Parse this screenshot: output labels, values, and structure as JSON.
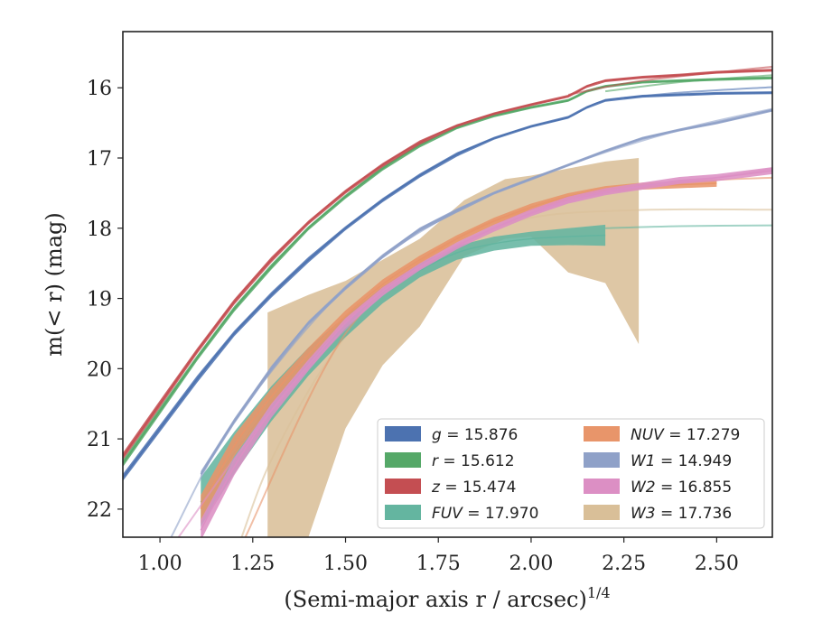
{
  "chart_data": {
    "type": "line",
    "title": "",
    "xlabel": "(Semi-major axis r / arcsec)",
    "xlabel_exponent": "1/4",
    "ylabel": "m(< r) (mag)",
    "xlim": [
      0.9,
      2.65
    ],
    "ylim": [
      22.4,
      15.2
    ],
    "y_inverted": true,
    "xticks": [
      1.0,
      1.25,
      1.5,
      1.75,
      2.0,
      2.25,
      2.5
    ],
    "xtick_labels": [
      "1.00",
      "1.25",
      "1.50",
      "1.75",
      "2.00",
      "2.25",
      "2.50"
    ],
    "yticks": [
      16,
      17,
      18,
      19,
      20,
      21,
      22
    ],
    "ytick_labels": [
      "16",
      "17",
      "18",
      "19",
      "20",
      "21",
      "22"
    ],
    "grid": false,
    "legend_position": "lower-right",
    "legend_columns": 2,
    "series": [
      {
        "band": "g",
        "legend": "g = 15.876",
        "color": "#4c72b0",
        "x": [
          0.9,
          1.0,
          1.1,
          1.2,
          1.3,
          1.4,
          1.5,
          1.6,
          1.7,
          1.8,
          1.9,
          2.0,
          2.1,
          2.15,
          2.2,
          2.3,
          2.4,
          2.5,
          2.65
        ],
        "y": [
          21.55,
          20.85,
          20.15,
          19.5,
          18.95,
          18.45,
          18.0,
          17.6,
          17.25,
          16.95,
          16.72,
          16.55,
          16.42,
          16.28,
          16.18,
          16.12,
          16.1,
          16.08,
          16.07
        ],
        "band_width": [
          0.05,
          0.05,
          0.05,
          0.04,
          0.04,
          0.04,
          0.03,
          0.03,
          0.03,
          0.03,
          0.02,
          0.02,
          0.02,
          0.02,
          0.02,
          0.02,
          0.02,
          0.02,
          0.02
        ],
        "extrapolation": {
          "x": [
            2.25,
            2.4,
            2.65
          ],
          "y": [
            16.15,
            16.07,
            15.99
          ]
        }
      },
      {
        "band": "r",
        "legend": "r = 15.612",
        "color": "#55a868",
        "x": [
          0.9,
          1.0,
          1.1,
          1.2,
          1.3,
          1.4,
          1.5,
          1.6,
          1.7,
          1.8,
          1.9,
          2.0,
          2.1,
          2.15,
          2.2,
          2.3,
          2.4,
          2.5,
          2.65
        ],
        "y": [
          21.35,
          20.6,
          19.85,
          19.15,
          18.55,
          18.0,
          17.55,
          17.15,
          16.82,
          16.57,
          16.4,
          16.28,
          16.18,
          16.05,
          15.98,
          15.92,
          15.9,
          15.88,
          15.86
        ],
        "band_width": [
          0.05,
          0.05,
          0.04,
          0.04,
          0.04,
          0.03,
          0.03,
          0.03,
          0.03,
          0.02,
          0.02,
          0.02,
          0.02,
          0.02,
          0.02,
          0.02,
          0.02,
          0.02,
          0.02
        ],
        "extrapolation": {
          "x": [
            2.2,
            2.4,
            2.65
          ],
          "y": [
            16.05,
            15.92,
            15.82
          ]
        }
      },
      {
        "band": "z",
        "legend": "z = 15.474",
        "color": "#c44e52",
        "x": [
          0.9,
          1.0,
          1.1,
          1.2,
          1.3,
          1.4,
          1.5,
          1.6,
          1.7,
          1.8,
          1.9,
          2.0,
          2.1,
          2.15,
          2.2,
          2.3,
          2.4,
          2.5,
          2.65
        ],
        "y": [
          21.25,
          20.5,
          19.75,
          19.05,
          18.45,
          17.92,
          17.48,
          17.1,
          16.78,
          16.54,
          16.37,
          16.24,
          16.12,
          15.98,
          15.9,
          15.85,
          15.82,
          15.78,
          15.75
        ],
        "band_width": [
          0.05,
          0.05,
          0.04,
          0.04,
          0.04,
          0.03,
          0.03,
          0.03,
          0.03,
          0.02,
          0.02,
          0.02,
          0.02,
          0.02,
          0.02,
          0.02,
          0.02,
          0.02,
          0.02
        ],
        "extrapolation": {
          "x": [
            2.1,
            2.3,
            2.65
          ],
          "y": [
            16.1,
            15.9,
            15.7
          ]
        }
      },
      {
        "band": "FUV",
        "legend": "FUV = 17.970",
        "color": "#64b5a0",
        "x": [
          1.11,
          1.2,
          1.3,
          1.4,
          1.5,
          1.6,
          1.7,
          1.8,
          1.9,
          2.0,
          2.1,
          2.2
        ],
        "y": [
          21.9,
          21.2,
          20.5,
          19.9,
          19.4,
          18.95,
          18.6,
          18.35,
          18.22,
          18.15,
          18.12,
          18.1
        ],
        "band_width": [
          0.35,
          0.3,
          0.25,
          0.2,
          0.15,
          0.12,
          0.1,
          0.1,
          0.1,
          0.1,
          0.12,
          0.15
        ],
        "extrapolation": {
          "x": [
            2.2,
            2.4,
            2.65
          ],
          "y": [
            18.0,
            17.97,
            17.96
          ]
        }
      },
      {
        "band": "NUV",
        "legend": "NUV = 17.279",
        "color": "#e8956a",
        "x": [
          1.11,
          1.2,
          1.3,
          1.4,
          1.5,
          1.6,
          1.7,
          1.8,
          1.9,
          2.0,
          2.1,
          2.2,
          2.3,
          2.4,
          2.5
        ],
        "y": [
          22.0,
          21.1,
          20.4,
          19.8,
          19.25,
          18.8,
          18.45,
          18.15,
          17.9,
          17.7,
          17.55,
          17.45,
          17.4,
          17.38,
          17.36
        ],
        "band_width": [
          0.2,
          0.15,
          0.12,
          0.1,
          0.08,
          0.07,
          0.06,
          0.05,
          0.05,
          0.05,
          0.05,
          0.05,
          0.05,
          0.05,
          0.05
        ],
        "extrapolation": {
          "x": [
            1.23,
            1.5,
            1.8,
            2.1,
            2.4,
            2.65
          ],
          "y": [
            22.4,
            19.5,
            18.15,
            17.6,
            17.35,
            17.28
          ]
        }
      },
      {
        "band": "W1",
        "legend": "W1 = 14.949",
        "color": "#8fa1c8",
        "x": [
          1.11,
          1.2,
          1.3,
          1.4,
          1.5,
          1.6,
          1.7,
          1.8,
          1.9,
          2.0,
          2.1,
          2.2,
          2.3,
          2.4,
          2.5,
          2.65
        ],
        "y": [
          21.5,
          20.75,
          20.0,
          19.35,
          18.85,
          18.4,
          18.02,
          17.75,
          17.5,
          17.3,
          17.1,
          16.9,
          16.72,
          16.6,
          16.5,
          16.32
        ],
        "band_width": [
          0.04,
          0.04,
          0.04,
          0.03,
          0.03,
          0.03,
          0.03,
          0.03,
          0.02,
          0.02,
          0.02,
          0.02,
          0.02,
          0.02,
          0.02,
          0.02
        ],
        "extrapolation": {
          "x": [
            1.03,
            1.2,
            1.5,
            1.8,
            2.1,
            2.4,
            2.65
          ],
          "y": [
            22.4,
            20.75,
            18.85,
            17.75,
            17.1,
            16.6,
            16.3
          ]
        }
      },
      {
        "band": "W2",
        "legend": "W2 = 16.855",
        "color": "#dc8fc4",
        "x": [
          1.11,
          1.2,
          1.3,
          1.4,
          1.5,
          1.6,
          1.7,
          1.8,
          1.9,
          2.0,
          2.1,
          2.2,
          2.3,
          2.4,
          2.5,
          2.65
        ],
        "y": [
          22.3,
          21.4,
          20.6,
          19.95,
          19.35,
          18.9,
          18.55,
          18.25,
          18.0,
          17.78,
          17.6,
          17.48,
          17.4,
          17.32,
          17.28,
          17.18
        ],
        "band_width": [
          0.15,
          0.12,
          0.1,
          0.08,
          0.07,
          0.06,
          0.05,
          0.05,
          0.05,
          0.05,
          0.05,
          0.05,
          0.05,
          0.05,
          0.05,
          0.05
        ],
        "extrapolation": {
          "x": [
            1.05,
            1.3,
            1.6,
            1.9,
            2.2,
            2.5,
            2.65
          ],
          "y": [
            22.4,
            20.6,
            18.95,
            18.0,
            17.5,
            17.28,
            17.15
          ]
        }
      },
      {
        "band": "W3",
        "legend": "W3 = 17.736",
        "color": "#d9bf98",
        "x": [
          1.29,
          1.4,
          1.5,
          1.6,
          1.7,
          1.82,
          1.93,
          2.0,
          2.1,
          2.2,
          2.29
        ],
        "y": [
          19.85,
          19.3,
          18.9,
          18.5,
          18.2,
          17.85,
          17.65,
          17.6,
          17.55,
          17.5,
          17.48
        ],
        "band_upper": [
          19.2,
          18.95,
          18.75,
          18.45,
          18.15,
          17.6,
          17.3,
          17.25,
          17.15,
          17.05,
          17.0
        ],
        "band_lower": [
          22.4,
          22.4,
          20.85,
          19.95,
          19.4,
          18.4,
          18.15,
          18.12,
          18.63,
          18.78,
          19.65
        ],
        "extrapolation": {
          "x": [
            1.22,
            1.3,
            1.45,
            1.6,
            1.8,
            2.0,
            2.3,
            2.65
          ],
          "y": [
            22.4,
            21.3,
            19.9,
            19.0,
            18.25,
            17.85,
            17.74,
            17.736
          ]
        }
      }
    ],
    "legend": [
      {
        "label": "g = 15.876",
        "var": "g",
        "value": "= 15.876",
        "color": "#4c72b0"
      },
      {
        "label": "r = 15.612",
        "var": "r",
        "value": "= 15.612",
        "color": "#55a868"
      },
      {
        "label": "z = 15.474",
        "var": "z",
        "value": "= 15.474",
        "color": "#c44e52"
      },
      {
        "label": "FUV = 17.970",
        "var": "FUV",
        "value": "= 17.970",
        "color": "#64b5a0"
      },
      {
        "label": "NUV = 17.279",
        "var": "NUV",
        "value": "= 17.279",
        "color": "#e8956a"
      },
      {
        "label": "W1 = 14.949",
        "var": "W1",
        "value": "= 14.949",
        "color": "#8fa1c8"
      },
      {
        "label": "W2 = 16.855",
        "var": "W2",
        "value": "= 16.855",
        "color": "#dc8fc4"
      },
      {
        "label": "W3 = 17.736",
        "var": "W3",
        "value": "= 17.736",
        "color": "#d9bf98"
      }
    ]
  }
}
